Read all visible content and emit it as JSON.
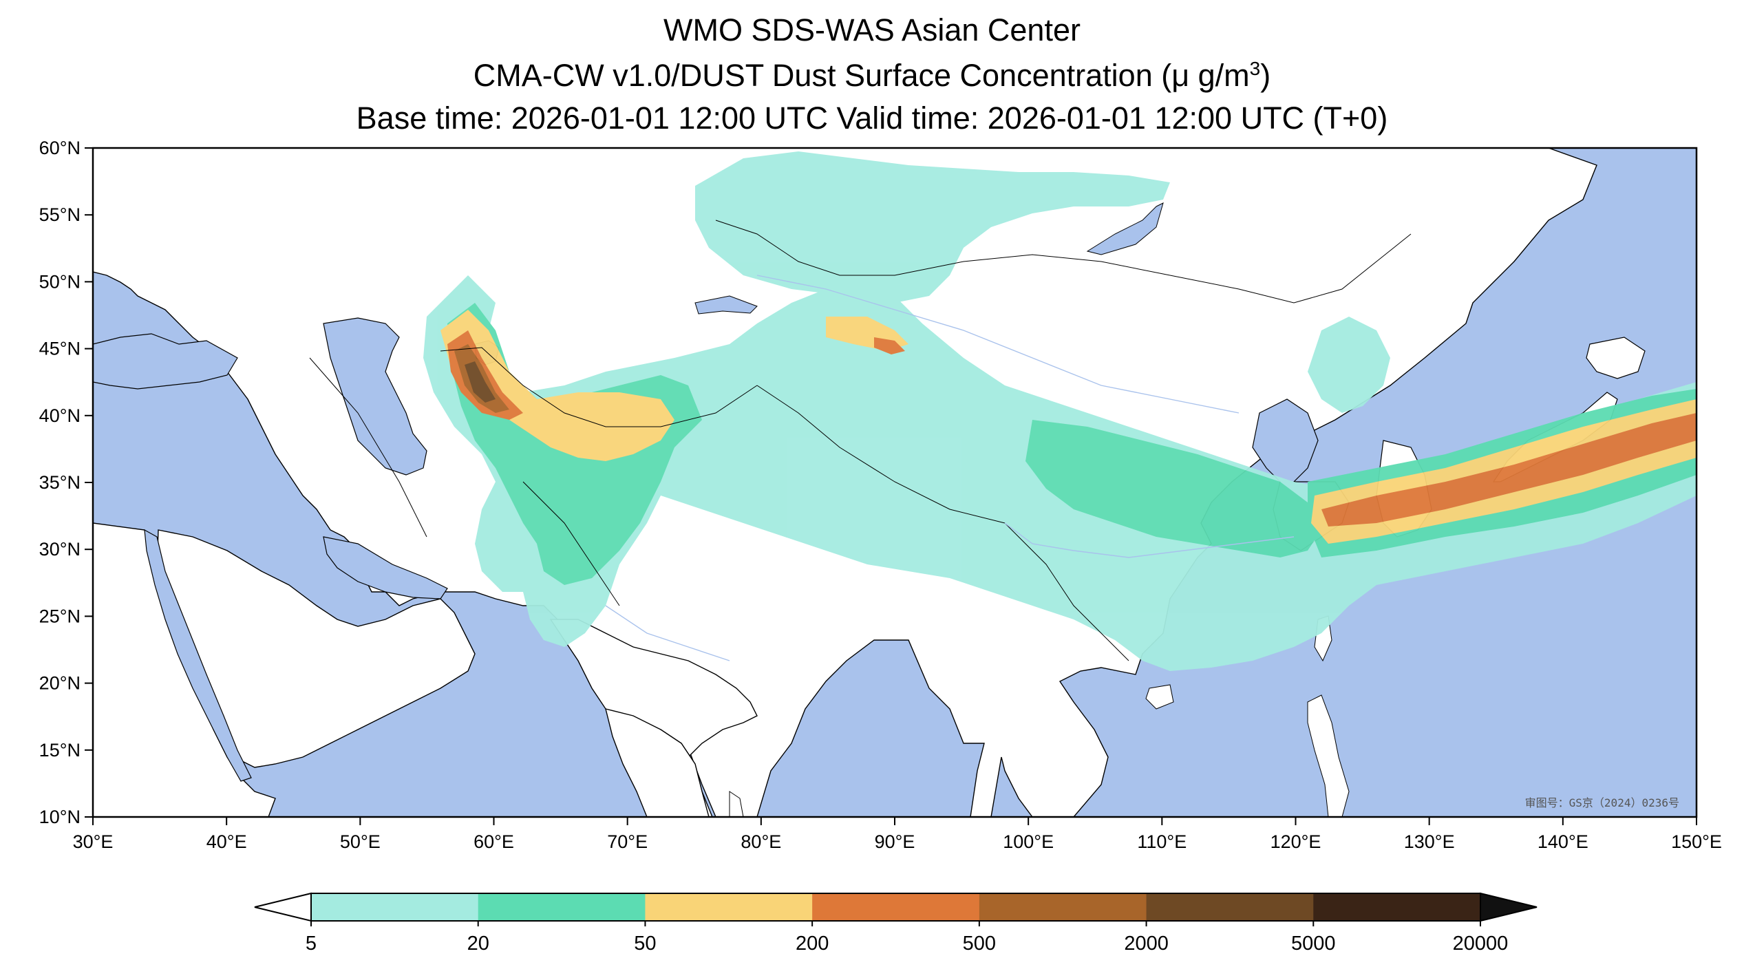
{
  "title": {
    "line1": "WMO SDS-WAS Asian Center",
    "line2_prefix": "CMA-CW v1.0/DUST Dust Surface Concentration (",
    "line2_unit": "μ g/m",
    "line2_sup": "3",
    "line2_suffix": ")",
    "line3": "Base time: 2026-01-01 12:00 UTC Valid time: 2026-01-01 12:00 UTC (T+0)"
  },
  "map": {
    "lon_range": [
      30,
      150
    ],
    "lat_range": [
      10,
      60
    ],
    "colors": {
      "land": "#ffffff",
      "water": "#a9c2ec",
      "border": "#000000",
      "river": "#a9c2ec"
    },
    "x_ticks": [
      "30°E",
      "40°E",
      "50°E",
      "60°E",
      "70°E",
      "80°E",
      "90°E",
      "100°E",
      "110°E",
      "120°E",
      "130°E",
      "140°E",
      "150°E"
    ],
    "y_ticks": [
      "60°N",
      "55°N",
      "50°N",
      "45°N",
      "40°N",
      "35°N",
      "30°N",
      "25°N",
      "20°N",
      "15°N",
      "10°N"
    ],
    "watermark": "审图号：GS京（2024）0236号"
  },
  "colorbar": {
    "levels": [
      "5",
      "20",
      "50",
      "200",
      "500",
      "2000",
      "5000",
      "20000"
    ],
    "colors": [
      "#a4ebe0",
      "#5cdcb2",
      "#f9d477",
      "#de7838",
      "#a8652a",
      "#6e4924",
      "#3a2416"
    ],
    "extend_low_color": "#ffffff",
    "extend_high_color": "#111111"
  }
}
